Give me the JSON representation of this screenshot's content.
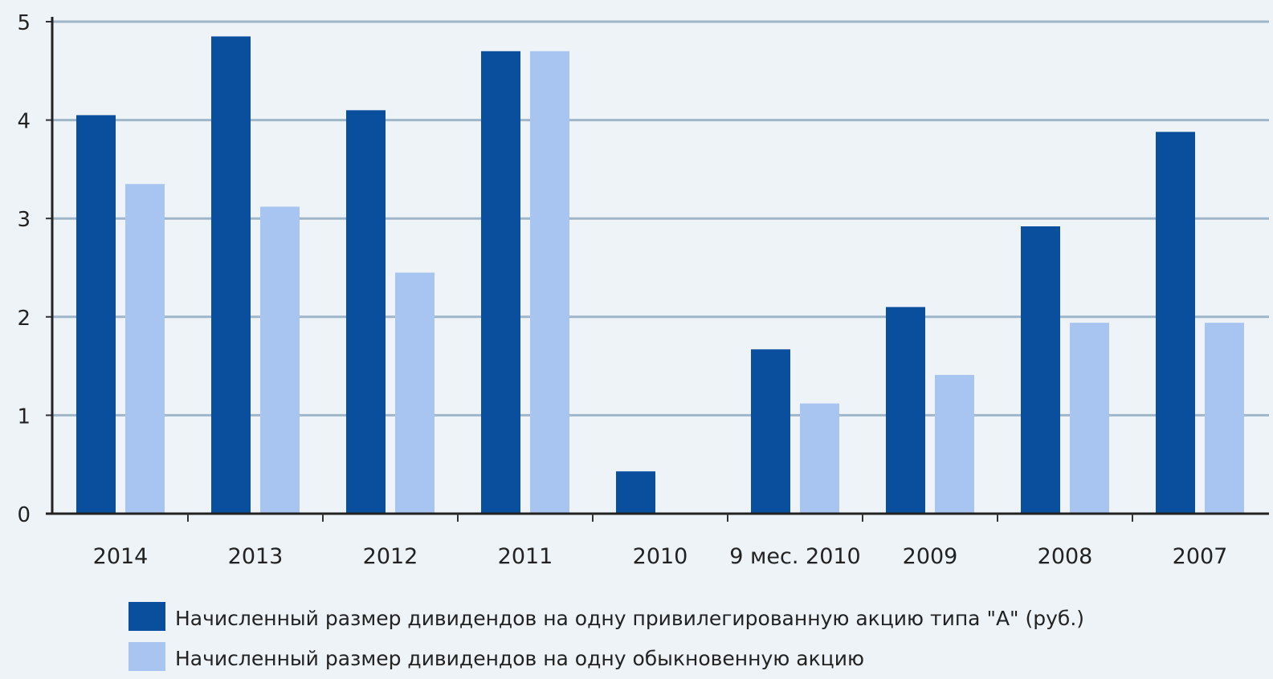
{
  "chart_data": {
    "type": "bar",
    "title": "",
    "xlabel": "",
    "ylabel": "",
    "categories": [
      "2014",
      "2013",
      "2012",
      "2011",
      "2010",
      "9 мес. 2010",
      "2009",
      "2008",
      "2007"
    ],
    "ylim": [
      0,
      5
    ],
    "yticks": [
      0,
      1,
      2,
      3,
      4,
      5
    ],
    "grid": true,
    "legend_position": "bottom",
    "colors": [
      "#0a4f9e",
      "#a8c4f0"
    ],
    "series": [
      {
        "name": "Начисленный размер дивидендов на одну привилегированную акцию типа \"А\" (руб.)",
        "values": [
          4.05,
          4.85,
          4.1,
          4.7,
          0.43,
          1.67,
          2.1,
          2.92,
          3.88
        ]
      },
      {
        "name": "Начисленный размер дивидендов на одну обыкновенную акцию",
        "values": [
          3.35,
          3.12,
          2.45,
          4.7,
          0,
          1.12,
          1.41,
          1.94,
          1.94
        ]
      }
    ]
  }
}
